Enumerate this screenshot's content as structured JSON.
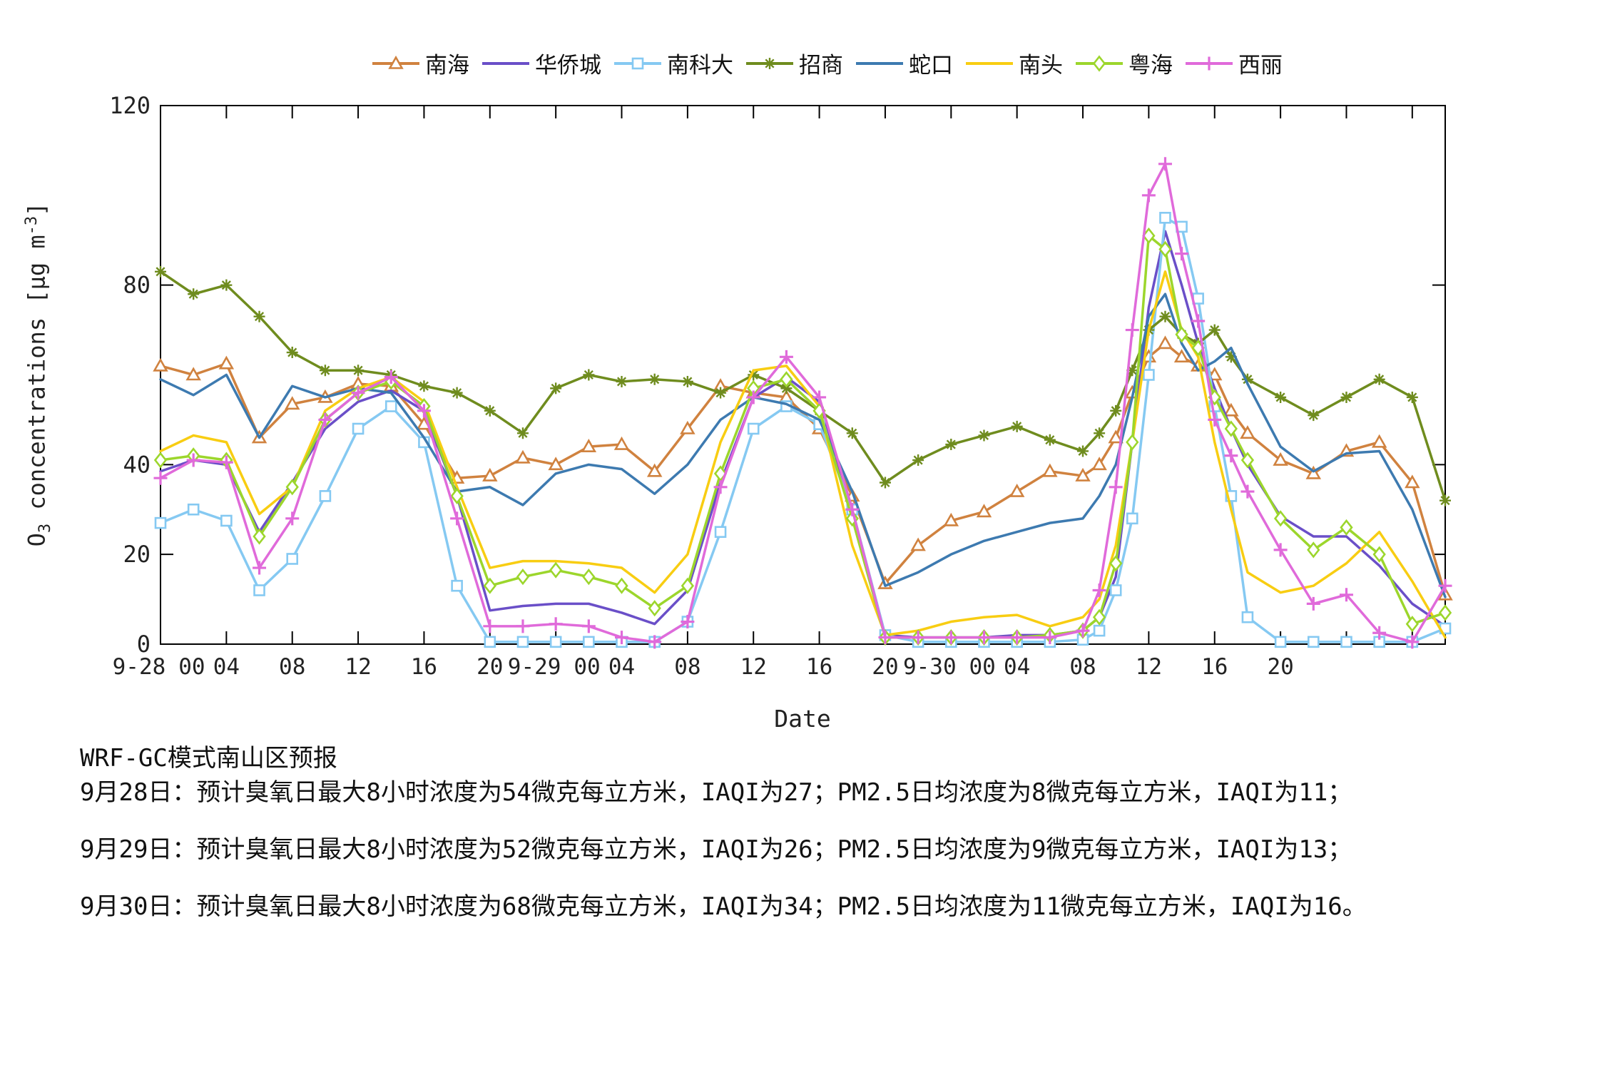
{
  "figure": {
    "background": "#ffffff",
    "axis_color": "#000000"
  },
  "legend": {
    "position": "top-center"
  },
  "axes": {
    "xlabel": "Date",
    "ylabel": {
      "base": "O",
      "subscript": "3",
      "mid": " concentrations [",
      "unit": "μg m",
      "exponent": "-3",
      "end": "]"
    },
    "ylim": [
      0,
      120
    ],
    "yticks": [
      0,
      20,
      40,
      80,
      120
    ],
    "xlim_hours": [
      0,
      78
    ],
    "xtick_marks": [
      0,
      4,
      8,
      12,
      16,
      20,
      24,
      28,
      32,
      36,
      40,
      44,
      48,
      52,
      56,
      60,
      64,
      68,
      72,
      76
    ],
    "xtick_labels": [
      {
        "x": -1.3,
        "t": "9-28"
      },
      {
        "x": 1.9,
        "t": "00"
      },
      {
        "x": 4,
        "t": "04"
      },
      {
        "x": 8,
        "t": "08"
      },
      {
        "x": 12,
        "t": "12"
      },
      {
        "x": 16,
        "t": "16"
      },
      {
        "x": 20,
        "t": "20"
      },
      {
        "x": 22.7,
        "t": "9-29"
      },
      {
        "x": 25.9,
        "t": "00"
      },
      {
        "x": 28,
        "t": "04"
      },
      {
        "x": 32,
        "t": "08"
      },
      {
        "x": 36,
        "t": "12"
      },
      {
        "x": 40,
        "t": "16"
      },
      {
        "x": 44,
        "t": "20"
      },
      {
        "x": 46.7,
        "t": "9-30"
      },
      {
        "x": 49.9,
        "t": "00"
      },
      {
        "x": 52,
        "t": "04"
      },
      {
        "x": 56,
        "t": "08"
      },
      {
        "x": 60,
        "t": "12"
      },
      {
        "x": 64,
        "t": "16"
      },
      {
        "x": 68,
        "t": "20"
      }
    ],
    "grid": false,
    "box": true
  },
  "chart_data": {
    "type": "line",
    "title": "",
    "xlabel": "Date",
    "ylabel": "O3 concentrations [ug m-3]",
    "x_unit": "hours since 9-28 00:00",
    "hours": [
      0,
      2,
      4,
      6,
      8,
      10,
      12,
      14,
      16,
      18,
      20,
      22,
      24,
      26,
      28,
      30,
      32,
      34,
      36,
      38,
      40,
      42,
      44,
      46,
      48,
      50,
      52,
      54,
      56,
      57,
      58,
      59,
      60,
      61,
      62,
      63,
      64,
      65,
      66,
      68,
      70,
      72,
      74,
      76,
      78
    ],
    "series": [
      {
        "name": "南海",
        "pinyin": "nanhai",
        "color": "#D0823F",
        "marker": "triangle",
        "values": [
          62,
          60,
          62.5,
          46,
          53.5,
          55,
          58,
          57.5,
          49,
          37,
          37.5,
          41.5,
          40,
          44,
          44.5,
          38.5,
          48,
          57.5,
          56,
          55,
          48,
          33,
          13.5,
          22,
          27.5,
          29.5,
          34,
          38.5,
          37.5,
          40,
          46,
          56,
          64,
          67,
          64,
          62,
          60,
          52,
          47,
          41,
          38,
          43,
          45,
          36,
          11
        ]
      },
      {
        "name": "华侨城",
        "pinyin": "huaqiaocheng",
        "color": "#6A4FC8",
        "marker": "none",
        "values": [
          38.5,
          41,
          40,
          25,
          36,
          48,
          54,
          56.5,
          52,
          33,
          7.5,
          8.5,
          9,
          9,
          7,
          4.5,
          12,
          36,
          55,
          59.5,
          54,
          30,
          2,
          1.5,
          1.5,
          1.5,
          2,
          2,
          3,
          6,
          15,
          45,
          75,
          92,
          80,
          67,
          57,
          48,
          40,
          28.5,
          24,
          24,
          17.5,
          9,
          4
        ]
      },
      {
        "name": "南科大",
        "pinyin": "nankeda",
        "color": "#85C9F2",
        "marker": "square",
        "values": [
          27,
          30,
          27.5,
          12,
          19,
          33,
          48,
          53,
          45,
          13,
          0.5,
          0.5,
          0.5,
          0.5,
          0.5,
          0.5,
          5,
          25,
          48,
          53,
          49,
          30,
          2,
          0.5,
          0.5,
          0.5,
          0.5,
          0.5,
          1,
          3,
          12,
          28,
          60,
          95,
          93,
          77,
          53,
          33,
          6,
          0.5,
          0.5,
          0.5,
          0.5,
          0.5,
          3.5
        ]
      },
      {
        "name": "招商",
        "pinyin": "zhaoshang",
        "color": "#6F8C1E",
        "marker": "asterisk",
        "values": [
          83,
          78,
          80,
          73,
          65,
          61,
          61,
          60,
          57.5,
          56,
          52,
          47,
          57,
          60,
          58.5,
          59,
          58.5,
          56,
          60,
          57,
          52,
          47,
          36,
          41,
          44.5,
          46.5,
          48.5,
          45.5,
          43,
          47,
          52,
          61,
          70,
          73,
          69,
          67,
          70,
          64,
          59,
          55,
          51,
          55,
          59,
          55,
          32
        ]
      },
      {
        "name": "蛇口",
        "pinyin": "shekou",
        "color": "#3D7AB0",
        "marker": "none",
        "values": [
          59,
          55.5,
          60,
          46,
          57.5,
          55,
          57,
          56,
          46,
          34,
          35,
          31,
          38,
          40,
          39,
          33.5,
          40,
          50,
          55,
          53.5,
          50,
          34,
          13,
          16,
          20,
          23,
          25,
          27,
          28,
          33,
          40,
          55,
          73,
          78,
          67,
          61,
          63,
          66,
          58,
          44,
          38.5,
          42.5,
          43,
          30,
          10.5
        ]
      },
      {
        "name": "南头",
        "pinyin": "nantou",
        "color": "#F8CD12",
        "marker": "none",
        "values": [
          43,
          46.5,
          45,
          29,
          35,
          52,
          57,
          59.5,
          54,
          35,
          17,
          18.5,
          18.5,
          18,
          17,
          11.5,
          20,
          45,
          61,
          62,
          53,
          22,
          2,
          3,
          5,
          6,
          6.5,
          4,
          6,
          10,
          22,
          45,
          70,
          83,
          70,
          64,
          45,
          30,
          16,
          11.5,
          13,
          18,
          25,
          14,
          1.5
        ]
      },
      {
        "name": "粤海",
        "pinyin": "yuehai",
        "color": "#9CD62C",
        "marker": "diamond",
        "values": [
          41,
          42,
          41,
          24,
          35,
          50,
          56,
          58.5,
          53,
          33,
          13,
          15,
          16.5,
          15,
          13,
          8,
          13,
          38,
          57,
          59,
          52,
          28,
          1.5,
          1.5,
          1.5,
          1.5,
          1.5,
          2,
          3,
          6,
          18,
          45,
          91,
          88,
          69,
          66,
          55,
          48,
          41,
          28,
          21,
          26,
          20,
          4.5,
          7
        ]
      },
      {
        "name": "西丽",
        "pinyin": "xili",
        "color": "#E06ADA",
        "marker": "plus",
        "values": [
          37,
          41,
          40.5,
          17,
          28,
          50,
          56,
          59.5,
          52,
          28,
          4,
          4,
          4.5,
          4,
          1.5,
          0.5,
          5,
          35,
          55,
          64,
          55,
          30,
          1.5,
          1.5,
          1.5,
          1.5,
          1.5,
          1.5,
          3,
          12,
          35,
          70,
          100,
          107,
          87,
          72,
          50,
          42,
          34,
          21,
          9,
          11,
          2.5,
          0.5,
          13
        ]
      }
    ],
    "legend_entries": [
      "南海",
      "华侨城",
      "南科大",
      "招商",
      "蛇口",
      "南头",
      "粤海",
      "西丽"
    ],
    "legend_position": "top",
    "marker_interval_hours": 2
  },
  "footer": {
    "title": "WRF-GC模式南山区预报",
    "lines": [
      "9月28日：预计臭氧日最大8小时浓度为54微克每立方米，IAQI为27；PM2.5日均浓度为8微克每立方米，IAQI为11；",
      "9月29日：预计臭氧日最大8小时浓度为52微克每立方米，IAQI为26；PM2.5日均浓度为9微克每立方米，IAQI为13；",
      "9月30日：预计臭氧日最大8小时浓度为68微克每立方米，IAQI为34；PM2.5日均浓度为11微克每立方米，IAQI为16。"
    ]
  }
}
